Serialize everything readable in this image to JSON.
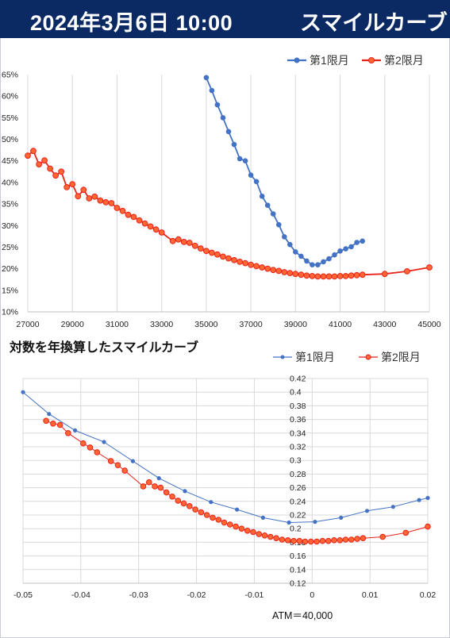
{
  "header": {
    "date_label": "2024年3月6日 10:00",
    "title": "スマイルカーブ"
  },
  "colors": {
    "header_bg": "#0b2a63",
    "series1": "#4472c4",
    "series2": "#e8231a",
    "marker2_fill": "#ff6633"
  },
  "chart_data": [
    {
      "type": "line",
      "title": "",
      "xlabel": "",
      "ylabel": "",
      "xlim": [
        27000,
        45000
      ],
      "ylim": [
        0.1,
        0.65
      ],
      "x_ticks": [
        27000,
        29000,
        31000,
        33000,
        35000,
        37000,
        39000,
        41000,
        43000,
        45000
      ],
      "x_tick_labels": [
        "27000",
        "29000",
        "31000",
        "33000",
        "35000",
        "37000",
        "39000",
        "41000",
        "43000",
        "45000"
      ],
      "y_ticks": [
        0.1,
        0.15,
        0.2,
        0.25,
        0.3,
        0.35,
        0.4,
        0.45,
        0.5,
        0.55,
        0.6,
        0.65
      ],
      "y_tick_labels": [
        "10%",
        "15%",
        "20%",
        "25%",
        "30%",
        "35%",
        "40%",
        "45%",
        "50%",
        "55%",
        "60%",
        "65%"
      ],
      "grid": "vertical",
      "legend_position": "top-right",
      "series": [
        {
          "name": "第1限月",
          "color": "#4472c4",
          "points": [
            [
              35000,
              0.643
            ],
            [
              35250,
              0.613
            ],
            [
              35500,
              0.58
            ],
            [
              35750,
              0.55
            ],
            [
              36000,
              0.518
            ],
            [
              36250,
              0.488
            ],
            [
              36500,
              0.455
            ],
            [
              36750,
              0.45
            ],
            [
              37000,
              0.417
            ],
            [
              37250,
              0.402
            ],
            [
              37500,
              0.368
            ],
            [
              37750,
              0.347
            ],
            [
              38000,
              0.327
            ],
            [
              38250,
              0.302
            ],
            [
              38500,
              0.274
            ],
            [
              38750,
              0.256
            ],
            [
              39000,
              0.239
            ],
            [
              39250,
              0.229
            ],
            [
              39500,
              0.218
            ],
            [
              39750,
              0.209
            ],
            [
              40000,
              0.209
            ],
            [
              40250,
              0.216
            ],
            [
              40500,
              0.223
            ],
            [
              40750,
              0.232
            ],
            [
              41000,
              0.241
            ],
            [
              41250,
              0.246
            ],
            [
              41500,
              0.251
            ],
            [
              41750,
              0.261
            ],
            [
              42000,
              0.264
            ]
          ]
        },
        {
          "name": "第2限月",
          "color": "#e8231a",
          "points": [
            [
              27000,
              0.462
            ],
            [
              27250,
              0.473
            ],
            [
              27500,
              0.442
            ],
            [
              27750,
              0.451
            ],
            [
              28000,
              0.432
            ],
            [
              28250,
              0.416
            ],
            [
              28500,
              0.425
            ],
            [
              28750,
              0.389
            ],
            [
              29000,
              0.396
            ],
            [
              29250,
              0.368
            ],
            [
              29500,
              0.383
            ],
            [
              29750,
              0.363
            ],
            [
              30000,
              0.367
            ],
            [
              30250,
              0.358
            ],
            [
              30500,
              0.354
            ],
            [
              30750,
              0.352
            ],
            [
              31000,
              0.341
            ],
            [
              31250,
              0.334
            ],
            [
              31500,
              0.325
            ],
            [
              31750,
              0.32
            ],
            [
              32000,
              0.312
            ],
            [
              32250,
              0.305
            ],
            [
              32500,
              0.298
            ],
            [
              32750,
              0.291
            ],
            [
              33000,
              0.284
            ],
            [
              33500,
              0.264
            ],
            [
              33750,
              0.268
            ],
            [
              34000,
              0.262
            ],
            [
              34250,
              0.26
            ],
            [
              34500,
              0.253
            ],
            [
              34750,
              0.247
            ],
            [
              35000,
              0.241
            ],
            [
              35250,
              0.237
            ],
            [
              35500,
              0.233
            ],
            [
              35750,
              0.228
            ],
            [
              36000,
              0.224
            ],
            [
              36250,
              0.22
            ],
            [
              36500,
              0.216
            ],
            [
              36750,
              0.213
            ],
            [
              37000,
              0.209
            ],
            [
              37250,
              0.206
            ],
            [
              37500,
              0.203
            ],
            [
              37750,
              0.2
            ],
            [
              38000,
              0.197
            ],
            [
              38250,
              0.195
            ],
            [
              38500,
              0.192
            ],
            [
              38750,
              0.19
            ],
            [
              39000,
              0.188
            ],
            [
              39250,
              0.186
            ],
            [
              39500,
              0.184
            ],
            [
              39750,
              0.183
            ],
            [
              40000,
              0.182
            ],
            [
              40250,
              0.182
            ],
            [
              40500,
              0.182
            ],
            [
              40750,
              0.182
            ],
            [
              41000,
              0.183
            ],
            [
              41250,
              0.183
            ],
            [
              41500,
              0.184
            ],
            [
              41750,
              0.185
            ],
            [
              42000,
              0.186
            ],
            [
              43000,
              0.188
            ],
            [
              44000,
              0.194
            ],
            [
              45000,
              0.203
            ]
          ]
        }
      ]
    },
    {
      "type": "line",
      "title": "対数を年換算したスマイルカーブ",
      "xlabel": "",
      "ylabel": "",
      "note": "ATM＝40,000",
      "xlim": [
        -0.05,
        0.02
      ],
      "ylim": [
        0.12,
        0.42
      ],
      "x_ticks": [
        -0.05,
        -0.04,
        -0.03,
        -0.02,
        -0.01,
        0,
        0.01,
        0.02
      ],
      "x_tick_labels": [
        "-0.05",
        "-0.04",
        "-0.03",
        "-0.02",
        "-0.01",
        "0",
        "0.01",
        "0.02"
      ],
      "y_ticks": [
        0.12,
        0.14,
        0.16,
        0.18,
        0.2,
        0.22,
        0.24,
        0.26,
        0.28,
        0.3,
        0.32,
        0.34,
        0.36,
        0.38,
        0.4,
        0.42
      ],
      "y_tick_labels": [
        "0.12",
        "0.14",
        "0.16",
        "0.18",
        "0.2",
        "0.22",
        "0.24",
        "0.26",
        "0.28",
        "0.3",
        "0.32",
        "0.34",
        "0.36",
        "0.38",
        "0.4",
        "0.42"
      ],
      "grid": "both",
      "legend_position": "top-right",
      "series": [
        {
          "name": "第1限月",
          "color": "#4472c4",
          "points": [
            [
              -0.05,
              0.4
            ],
            [
              -0.0455,
              0.368
            ],
            [
              -0.041,
              0.344
            ],
            [
              -0.036,
              0.327
            ],
            [
              -0.031,
              0.299
            ],
            [
              -0.0265,
              0.274
            ],
            [
              -0.022,
              0.255
            ],
            [
              -0.0175,
              0.239
            ],
            [
              -0.013,
              0.228
            ],
            [
              -0.0085,
              0.216
            ],
            [
              -0.004,
              0.209
            ],
            [
              0.0005,
              0.21
            ],
            [
              0.005,
              0.216
            ],
            [
              0.0095,
              0.226
            ],
            [
              0.014,
              0.232
            ],
            [
              0.0185,
              0.242
            ],
            [
              0.02,
              0.245
            ]
          ]
        },
        {
          "name": "第2限月",
          "color": "#e8231a",
          "points": [
            [
              -0.046,
              0.358
            ],
            [
              -0.0448,
              0.354
            ],
            [
              -0.0436,
              0.352
            ],
            [
              -0.0422,
              0.34
            ],
            [
              -0.0396,
              0.325
            ],
            [
              -0.0384,
              0.319
            ],
            [
              -0.0372,
              0.312
            ],
            [
              -0.0348,
              0.299
            ],
            [
              -0.0336,
              0.293
            ],
            [
              -0.0324,
              0.285
            ],
            [
              -0.0292,
              0.262
            ],
            [
              -0.0282,
              0.268
            ],
            [
              -0.0272,
              0.262
            ],
            [
              -0.0262,
              0.26
            ],
            [
              -0.0252,
              0.253
            ],
            [
              -0.0242,
              0.247
            ],
            [
              -0.0232,
              0.241
            ],
            [
              -0.0222,
              0.237
            ],
            [
              -0.0212,
              0.233
            ],
            [
              -0.0202,
              0.228
            ],
            [
              -0.0192,
              0.224
            ],
            [
              -0.0182,
              0.22
            ],
            [
              -0.0172,
              0.216
            ],
            [
              -0.0162,
              0.213
            ],
            [
              -0.0152,
              0.209
            ],
            [
              -0.0142,
              0.206
            ],
            [
              -0.0132,
              0.203
            ],
            [
              -0.0122,
              0.2
            ],
            [
              -0.0112,
              0.197
            ],
            [
              -0.0102,
              0.195
            ],
            [
              -0.0092,
              0.192
            ],
            [
              -0.0082,
              0.19
            ],
            [
              -0.0072,
              0.188
            ],
            [
              -0.0062,
              0.186
            ],
            [
              -0.0052,
              0.184
            ],
            [
              -0.0042,
              0.183
            ],
            [
              -0.0032,
              0.182
            ],
            [
              -0.0022,
              0.182
            ],
            [
              -0.0012,
              0.181
            ],
            [
              -0.0002,
              0.181
            ],
            [
              0.0008,
              0.181
            ],
            [
              0.0018,
              0.182
            ],
            [
              0.0028,
              0.182
            ],
            [
              0.0038,
              0.183
            ],
            [
              0.0048,
              0.183
            ],
            [
              0.0058,
              0.184
            ],
            [
              0.0068,
              0.184
            ],
            [
              0.0078,
              0.185
            ],
            [
              0.0088,
              0.186
            ],
            [
              0.0122,
              0.188
            ],
            [
              0.0162,
              0.194
            ],
            [
              0.02,
              0.203
            ]
          ]
        }
      ]
    }
  ]
}
